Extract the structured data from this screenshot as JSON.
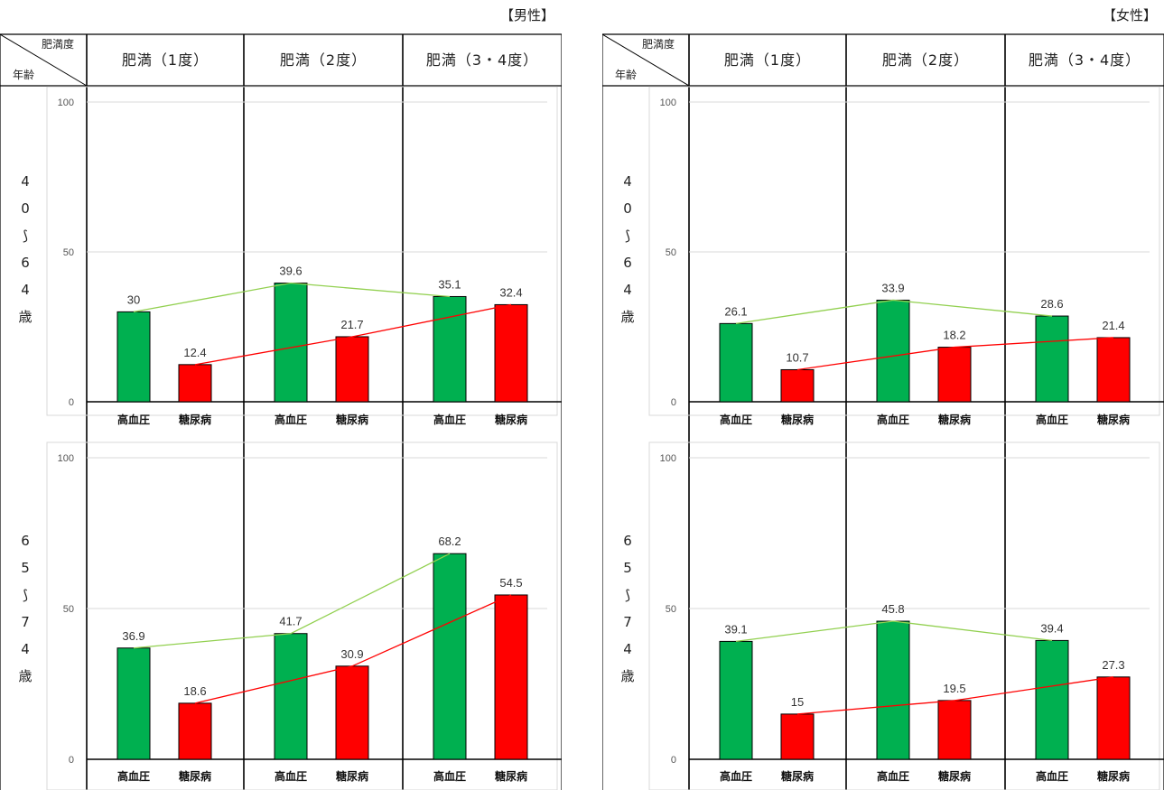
{
  "header": {
    "corner_top": "肥満度",
    "corner_bottom": "年齢",
    "columns": [
      "肥満（1度）",
      "肥満（2度）",
      "肥満（3・4度）"
    ]
  },
  "panels": [
    {
      "gender": "【男性】"
    },
    {
      "gender": "【女性】"
    }
  ],
  "rows": [
    {
      "age_chars": [
        "4",
        "0",
        "⟆",
        "6",
        "4",
        "歳"
      ]
    },
    {
      "age_chars": [
        "6",
        "5",
        "⟆",
        "7",
        "4",
        "歳"
      ]
    }
  ],
  "colors": {
    "hypertension": "#00b050",
    "diabetes": "#ff0000",
    "hypertension_line": "#92d050",
    "diabetes_line": "#ff0000"
  },
  "chart_data": [
    {
      "type": "bar",
      "gender": "【男性】",
      "age": "40〜64歳",
      "categories": [
        "肥満（1度）",
        "肥満（2度）",
        "肥満（3・4度）"
      ],
      "bar_labels": [
        "高血圧",
        "糖尿病"
      ],
      "series": [
        {
          "name": "高血圧",
          "values": [
            30,
            39.6,
            35.1
          ]
        },
        {
          "name": "糖尿病",
          "values": [
            12.4,
            21.7,
            32.4
          ]
        }
      ],
      "ylim": [
        0,
        100
      ],
      "yticks": [
        0,
        50,
        100
      ],
      "title": "",
      "xlabel": "",
      "ylabel": ""
    },
    {
      "type": "bar",
      "gender": "【男性】",
      "age": "65〜74歳",
      "categories": [
        "肥満（1度）",
        "肥満（2度）",
        "肥満（3・4度）"
      ],
      "bar_labels": [
        "高血圧",
        "糖尿病"
      ],
      "series": [
        {
          "name": "高血圧",
          "values": [
            36.9,
            41.7,
            68.2
          ]
        },
        {
          "name": "糖尿病",
          "values": [
            18.6,
            30.9,
            54.5
          ]
        }
      ],
      "ylim": [
        0,
        100
      ],
      "yticks": [
        0,
        50,
        100
      ],
      "title": "",
      "xlabel": "",
      "ylabel": ""
    },
    {
      "type": "bar",
      "gender": "【女性】",
      "age": "40〜64歳",
      "categories": [
        "肥満（1度）",
        "肥満（2度）",
        "肥満（3・4度）"
      ],
      "bar_labels": [
        "高血圧",
        "糖尿病"
      ],
      "series": [
        {
          "name": "高血圧",
          "values": [
            26.1,
            33.9,
            28.6
          ]
        },
        {
          "name": "糖尿病",
          "values": [
            10.7,
            18.2,
            21.4
          ]
        }
      ],
      "ylim": [
        0,
        100
      ],
      "yticks": [
        0,
        50,
        100
      ],
      "title": "",
      "xlabel": "",
      "ylabel": ""
    },
    {
      "type": "bar",
      "gender": "【女性】",
      "age": "65〜74歳",
      "categories": [
        "肥満（1度）",
        "肥満（2度）",
        "肥満（3・4度）"
      ],
      "bar_labels": [
        "高血圧",
        "糖尿病"
      ],
      "series": [
        {
          "name": "高血圧",
          "values": [
            39.1,
            45.8,
            39.4
          ]
        },
        {
          "name": "糖尿病",
          "values": [
            15,
            19.5,
            27.3
          ]
        }
      ],
      "ylim": [
        0,
        100
      ],
      "yticks": [
        0,
        50,
        100
      ],
      "title": "",
      "xlabel": "",
      "ylabel": ""
    }
  ]
}
